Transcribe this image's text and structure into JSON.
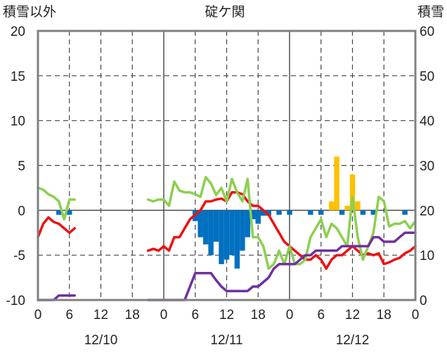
{
  "chart_data": {
    "type": "line",
    "title": "碇ケ関",
    "ylabel_left": "積雪以外",
    "ylabel_right": "積雪",
    "y_left": {
      "min": -10,
      "max": 20,
      "ticks": [
        "-10",
        "-5",
        "0",
        "5",
        "10",
        "15",
        "20"
      ]
    },
    "y_right": {
      "min": 0,
      "max": 60,
      "ticks": [
        "0",
        "10",
        "20",
        "30",
        "40",
        "50",
        "60"
      ]
    },
    "x_hours": {
      "min": 0,
      "max": 72
    },
    "x_tick_labels": [
      "0",
      "6",
      "12",
      "18",
      "0",
      "6",
      "12",
      "18",
      "0",
      "6",
      "12",
      "18",
      "0"
    ],
    "date_labels": [
      {
        "text": "12/10",
        "hour": 12
      },
      {
        "text": "12/11",
        "hour": 36
      },
      {
        "text": "12/12",
        "hour": 60
      }
    ],
    "grid": true,
    "colors": {
      "red": "#ee1111",
      "green": "#8ccf50",
      "purple": "#7030a0",
      "blue": "#0070c0",
      "yellow": "#ffc000",
      "grid": "#444444",
      "frame": "#808080"
    },
    "series": [
      {
        "color": "red",
        "axis": "left",
        "segments": [
          [
            [
              0,
              -3
            ],
            [
              1,
              -1.5
            ],
            [
              2,
              -0.8
            ],
            [
              3,
              -1.3
            ],
            [
              4,
              -1.5
            ],
            [
              5,
              -2
            ],
            [
              6,
              -2.5
            ],
            [
              7,
              -2
            ]
          ],
          [
            [
              21,
              -4.5
            ],
            [
              22,
              -4.3
            ],
            [
              23,
              -4.5
            ],
            [
              24,
              -4
            ],
            [
              25,
              -4.5
            ],
            [
              26,
              -3
            ],
            [
              27,
              -3
            ],
            [
              28,
              -2
            ],
            [
              29,
              -1
            ],
            [
              30,
              -0.5
            ],
            [
              31,
              0
            ],
            [
              32,
              1
            ],
            [
              33,
              1
            ],
            [
              34,
              1.2
            ],
            [
              35,
              1.3
            ],
            [
              36,
              1
            ],
            [
              37,
              2
            ],
            [
              38,
              2
            ],
            [
              39,
              1.8
            ],
            [
              40,
              1
            ],
            [
              41,
              0.5
            ],
            [
              42,
              0.5
            ],
            [
              43,
              0
            ],
            [
              44,
              -0.5
            ],
            [
              45,
              -1.5
            ],
            [
              46,
              -2.5
            ],
            [
              47,
              -3.5
            ],
            [
              48,
              -4
            ],
            [
              49,
              -4.5
            ],
            [
              50,
              -5
            ],
            [
              51,
              -5.5
            ],
            [
              52,
              -5.5
            ],
            [
              53,
              -5
            ],
            [
              54,
              -5.5
            ],
            [
              55,
              -6.5
            ],
            [
              56,
              -5.5
            ],
            [
              57,
              -5
            ],
            [
              58,
              -5
            ],
            [
              59,
              -4.5
            ],
            [
              60,
              -4
            ],
            [
              61,
              -4.5
            ],
            [
              62,
              -5
            ],
            [
              63,
              -4.8
            ],
            [
              64,
              -5
            ],
            [
              65,
              -4.8
            ],
            [
              66,
              -6
            ],
            [
              67,
              -5.8
            ],
            [
              68,
              -5.5
            ],
            [
              69,
              -5.3
            ],
            [
              70,
              -4.8
            ],
            [
              71,
              -4.5
            ],
            [
              72,
              -4
            ]
          ]
        ]
      },
      {
        "color": "green",
        "axis": "left",
        "segments": [
          [
            [
              0,
              2.5
            ],
            [
              1,
              2.3
            ],
            [
              2,
              1.8
            ],
            [
              3,
              1.5
            ],
            [
              4,
              1
            ],
            [
              5,
              -1
            ],
            [
              6,
              1.2
            ],
            [
              7,
              1.2
            ]
          ],
          [
            [
              21,
              1.2
            ],
            [
              22,
              1
            ],
            [
              23,
              1.2
            ],
            [
              24,
              1.2
            ],
            [
              25,
              0.5
            ],
            [
              26,
              3.2
            ],
            [
              27,
              2.2
            ],
            [
              28,
              2
            ],
            [
              29,
              2
            ],
            [
              30,
              1.8
            ],
            [
              31,
              1.5
            ],
            [
              32,
              3.7
            ],
            [
              33,
              3
            ],
            [
              34,
              1.7
            ],
            [
              35,
              2.5
            ],
            [
              36,
              1
            ],
            [
              37,
              3.5
            ],
            [
              38,
              2
            ],
            [
              39,
              1
            ],
            [
              40,
              3.5
            ],
            [
              41,
              -3
            ],
            [
              42,
              -3
            ],
            [
              43,
              -4
            ],
            [
              44,
              -6.5
            ],
            [
              45,
              -6
            ],
            [
              46,
              -4.5
            ],
            [
              47,
              -6
            ],
            [
              48,
              -4
            ],
            [
              49,
              -6
            ],
            [
              50,
              -6
            ],
            [
              51,
              -5.5
            ],
            [
              52,
              -3
            ],
            [
              53,
              -2
            ],
            [
              54,
              -1
            ],
            [
              55,
              -3
            ],
            [
              56,
              -1.5
            ],
            [
              57,
              -2
            ],
            [
              58,
              -3
            ],
            [
              59,
              -4
            ],
            [
              60,
              1.5
            ],
            [
              61,
              -3
            ],
            [
              62,
              -5.5
            ],
            [
              63,
              -4
            ],
            [
              64,
              -2.5
            ],
            [
              65,
              1.5
            ],
            [
              66,
              1
            ],
            [
              67,
              -1.8
            ],
            [
              68,
              -1.5
            ],
            [
              69,
              -1.5
            ],
            [
              70,
              -1.2
            ],
            [
              71,
              -2
            ],
            [
              72,
              -1.2
            ]
          ]
        ]
      },
      {
        "color": "purple",
        "axis": "left",
        "segments": [
          [
            [
              0,
              -10
            ],
            [
              1,
              -10
            ],
            [
              2,
              -10
            ],
            [
              3,
              -10
            ],
            [
              4,
              -9.5
            ],
            [
              5,
              -9.5
            ],
            [
              6,
              -9.5
            ],
            [
              7,
              -9.5
            ]
          ],
          [
            [
              21,
              -10
            ],
            [
              22,
              -10
            ],
            [
              23,
              -10
            ],
            [
              24,
              -10
            ],
            [
              25,
              -10
            ],
            [
              26,
              -10
            ],
            [
              27,
              -10
            ],
            [
              28,
              -10
            ],
            [
              29,
              -8.5
            ],
            [
              30,
              -7
            ],
            [
              31,
              -7
            ],
            [
              32,
              -7
            ],
            [
              33,
              -7
            ],
            [
              34,
              -7.8
            ],
            [
              35,
              -8.5
            ],
            [
              36,
              -9
            ],
            [
              37,
              -9
            ],
            [
              38,
              -9
            ],
            [
              39,
              -9
            ],
            [
              40,
              -9
            ],
            [
              41,
              -8.5
            ],
            [
              42,
              -8.5
            ],
            [
              43,
              -8
            ],
            [
              44,
              -7.5
            ],
            [
              45,
              -6.5
            ],
            [
              46,
              -6
            ],
            [
              47,
              -6
            ],
            [
              48,
              -6
            ],
            [
              49,
              -6
            ],
            [
              50,
              -5.5
            ],
            [
              51,
              -5
            ],
            [
              52,
              -5
            ],
            [
              53,
              -4.5
            ],
            [
              54,
              -4.5
            ],
            [
              55,
              -4.5
            ],
            [
              56,
              -4.5
            ],
            [
              57,
              -4.5
            ],
            [
              58,
              -4
            ],
            [
              59,
              -4
            ],
            [
              60,
              -4
            ],
            [
              61,
              -4
            ],
            [
              62,
              -4
            ],
            [
              63,
              -4
            ],
            [
              64,
              -3
            ],
            [
              65,
              -3
            ],
            [
              66,
              -3.5
            ],
            [
              67,
              -3.5
            ],
            [
              68,
              -3.5
            ],
            [
              69,
              -3
            ],
            [
              70,
              -2.5
            ],
            [
              71,
              -2.5
            ],
            [
              72,
              -2.5
            ]
          ]
        ]
      }
    ],
    "bars_blue": [
      {
        "hour": 4,
        "value": -0.5
      },
      {
        "hour": 6,
        "value": -0.5
      },
      {
        "hour": 30,
        "value": -1.2
      },
      {
        "hour": 31,
        "value": -3
      },
      {
        "hour": 32,
        "value": -3.8
      },
      {
        "hour": 33,
        "value": -5
      },
      {
        "hour": 34,
        "value": -3.5
      },
      {
        "hour": 35,
        "value": -6
      },
      {
        "hour": 36,
        "value": -5.5
      },
      {
        "hour": 37,
        "value": -5
      },
      {
        "hour": 38,
        "value": -6.5
      },
      {
        "hour": 39,
        "value": -4.5
      },
      {
        "hour": 40,
        "value": -3
      },
      {
        "hour": 41,
        "value": -1
      },
      {
        "hour": 42,
        "value": -1.5
      },
      {
        "hour": 43,
        "value": -0.6
      },
      {
        "hour": 44,
        "value": -0.6
      },
      {
        "hour": 46,
        "value": -0.5
      },
      {
        "hour": 48,
        "value": -0.5
      },
      {
        "hour": 52,
        "value": -0.5
      },
      {
        "hour": 54,
        "value": -0.5
      },
      {
        "hour": 58,
        "value": -0.5
      },
      {
        "hour": 62,
        "value": -0.5
      },
      {
        "hour": 64,
        "value": -0.5
      },
      {
        "hour": 70,
        "value": -0.5
      }
    ],
    "bars_yellow": [
      {
        "hour": 56,
        "value": 1
      },
      {
        "hour": 57,
        "value": 6
      },
      {
        "hour": 59,
        "value": 0.5
      },
      {
        "hour": 60,
        "value": 4
      },
      {
        "hour": 61,
        "value": 1
      }
    ]
  }
}
